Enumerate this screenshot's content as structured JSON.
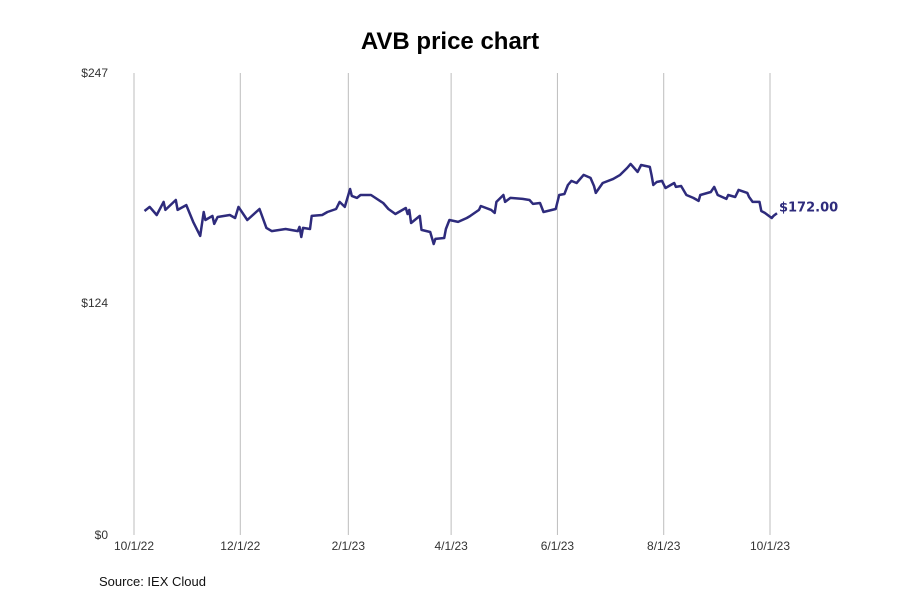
{
  "chart_data": {
    "type": "line",
    "title": "AVB price chart",
    "source": "Source: IEX Cloud",
    "xlabel": "",
    "ylabel": "",
    "ylim": [
      0,
      247
    ],
    "xlim": [
      "2022-10-01",
      "2023-10-01"
    ],
    "y_ticks": [
      {
        "value": 0,
        "label": "$0"
      },
      {
        "value": 124,
        "label": "$124"
      },
      {
        "value": 247,
        "label": "$247"
      }
    ],
    "x_ticks": [
      {
        "date": "2022-10-01",
        "label": "10/1/22"
      },
      {
        "date": "2022-12-01",
        "label": "12/1/22"
      },
      {
        "date": "2023-02-01",
        "label": "2/1/23"
      },
      {
        "date": "2023-04-01",
        "label": "4/1/23"
      },
      {
        "date": "2023-06-01",
        "label": "6/1/23"
      },
      {
        "date": "2023-08-01",
        "label": "8/1/23"
      },
      {
        "date": "2023-10-01",
        "label": "10/1/23"
      }
    ],
    "grid": {
      "vertical": true,
      "horizontal": false
    },
    "line_color": "#2e2b7c",
    "last_value_label": "$172.00",
    "series": [
      {
        "points": [
          [
            "2022-10-07",
            173.2
          ],
          [
            "2022-10-10",
            175.4
          ],
          [
            "2022-10-14",
            171.1
          ],
          [
            "2022-10-18",
            178.1
          ],
          [
            "2022-10-19",
            173.8
          ],
          [
            "2022-10-25",
            179.1
          ],
          [
            "2022-10-26",
            173.8
          ],
          [
            "2022-10-31",
            176.4
          ],
          [
            "2022-11-04",
            167.4
          ],
          [
            "2022-11-08",
            159.9
          ],
          [
            "2022-11-10",
            172.7
          ],
          [
            "2022-11-11",
            168.4
          ],
          [
            "2022-11-15",
            170.6
          ],
          [
            "2022-11-16",
            166.3
          ],
          [
            "2022-11-18",
            170.0
          ],
          [
            "2022-11-25",
            171.1
          ],
          [
            "2022-11-28",
            169.5
          ],
          [
            "2022-11-30",
            175.4
          ],
          [
            "2022-12-05",
            168.4
          ],
          [
            "2022-12-12",
            174.3
          ],
          [
            "2022-12-16",
            164.2
          ],
          [
            "2022-12-19",
            162.5
          ],
          [
            "2022-12-27",
            163.6
          ],
          [
            "2023-01-03",
            162.5
          ],
          [
            "2023-01-04",
            164.7
          ],
          [
            "2023-01-05",
            159.3
          ],
          [
            "2023-01-06",
            164.2
          ],
          [
            "2023-01-10",
            163.6
          ],
          [
            "2023-01-11",
            170.6
          ],
          [
            "2023-01-17",
            171.1
          ],
          [
            "2023-01-20",
            172.7
          ],
          [
            "2023-01-25",
            174.3
          ],
          [
            "2023-01-27",
            178.1
          ],
          [
            "2023-01-30",
            175.4
          ],
          [
            "2023-02-02",
            185.0
          ],
          [
            "2023-02-03",
            181.3
          ],
          [
            "2023-02-06",
            180.2
          ],
          [
            "2023-02-08",
            181.8
          ],
          [
            "2023-02-14",
            181.8
          ],
          [
            "2023-02-21",
            177.5
          ],
          [
            "2023-02-24",
            174.3
          ],
          [
            "2023-02-28",
            171.6
          ],
          [
            "2023-03-06",
            174.8
          ],
          [
            "2023-03-07",
            171.6
          ],
          [
            "2023-03-08",
            173.8
          ],
          [
            "2023-03-09",
            166.8
          ],
          [
            "2023-03-14",
            170.6
          ],
          [
            "2023-03-15",
            163.1
          ],
          [
            "2023-03-20",
            162.0
          ],
          [
            "2023-03-22",
            155.6
          ],
          [
            "2023-03-23",
            158.3
          ],
          [
            "2023-03-28",
            158.8
          ],
          [
            "2023-03-29",
            163.6
          ],
          [
            "2023-03-31",
            168.4
          ],
          [
            "2023-04-05",
            167.4
          ],
          [
            "2023-04-10",
            169.5
          ],
          [
            "2023-04-12",
            170.6
          ],
          [
            "2023-04-17",
            173.8
          ],
          [
            "2023-04-18",
            175.9
          ],
          [
            "2023-04-24",
            173.8
          ],
          [
            "2023-04-26",
            172.2
          ],
          [
            "2023-04-27",
            178.1
          ],
          [
            "2023-05-01",
            181.8
          ],
          [
            "2023-05-02",
            178.1
          ],
          [
            "2023-05-05",
            180.2
          ],
          [
            "2023-05-12",
            179.7
          ],
          [
            "2023-05-16",
            179.1
          ],
          [
            "2023-05-18",
            177.0
          ],
          [
            "2023-05-22",
            177.5
          ],
          [
            "2023-05-24",
            172.7
          ],
          [
            "2023-05-31",
            174.3
          ],
          [
            "2023-06-02",
            181.8
          ],
          [
            "2023-06-05",
            182.3
          ],
          [
            "2023-06-07",
            187.1
          ],
          [
            "2023-06-09",
            189.3
          ],
          [
            "2023-06-12",
            188.2
          ],
          [
            "2023-06-16",
            192.5
          ],
          [
            "2023-06-20",
            190.9
          ],
          [
            "2023-06-22",
            186.6
          ],
          [
            "2023-06-23",
            182.9
          ],
          [
            "2023-06-27",
            188.2
          ],
          [
            "2023-07-03",
            190.4
          ],
          [
            "2023-07-07",
            192.5
          ],
          [
            "2023-07-11",
            196.2
          ],
          [
            "2023-07-13",
            198.4
          ],
          [
            "2023-07-17",
            194.1
          ],
          [
            "2023-07-19",
            197.8
          ],
          [
            "2023-07-24",
            196.8
          ],
          [
            "2023-07-25",
            192.5
          ],
          [
            "2023-07-26",
            187.1
          ],
          [
            "2023-07-28",
            188.7
          ],
          [
            "2023-07-31",
            189.3
          ],
          [
            "2023-08-02",
            185.5
          ],
          [
            "2023-08-07",
            188.2
          ],
          [
            "2023-08-08",
            186.1
          ],
          [
            "2023-08-11",
            186.6
          ],
          [
            "2023-08-14",
            181.8
          ],
          [
            "2023-08-18",
            180.2
          ],
          [
            "2023-08-21",
            178.6
          ],
          [
            "2023-08-22",
            181.8
          ],
          [
            "2023-08-28",
            183.4
          ],
          [
            "2023-08-30",
            186.1
          ],
          [
            "2023-09-01",
            181.8
          ],
          [
            "2023-09-06",
            179.7
          ],
          [
            "2023-09-07",
            181.8
          ],
          [
            "2023-09-11",
            180.7
          ],
          [
            "2023-09-13",
            184.5
          ],
          [
            "2023-09-18",
            182.9
          ],
          [
            "2023-09-19",
            180.7
          ],
          [
            "2023-09-21",
            178.1
          ],
          [
            "2023-09-25",
            178.1
          ],
          [
            "2023-09-26",
            173.2
          ],
          [
            "2023-09-28",
            172.2
          ],
          [
            "2023-10-02",
            169.5
          ],
          [
            "2023-10-03",
            170.6
          ],
          [
            "2023-10-05",
            172.0
          ]
        ]
      }
    ]
  }
}
